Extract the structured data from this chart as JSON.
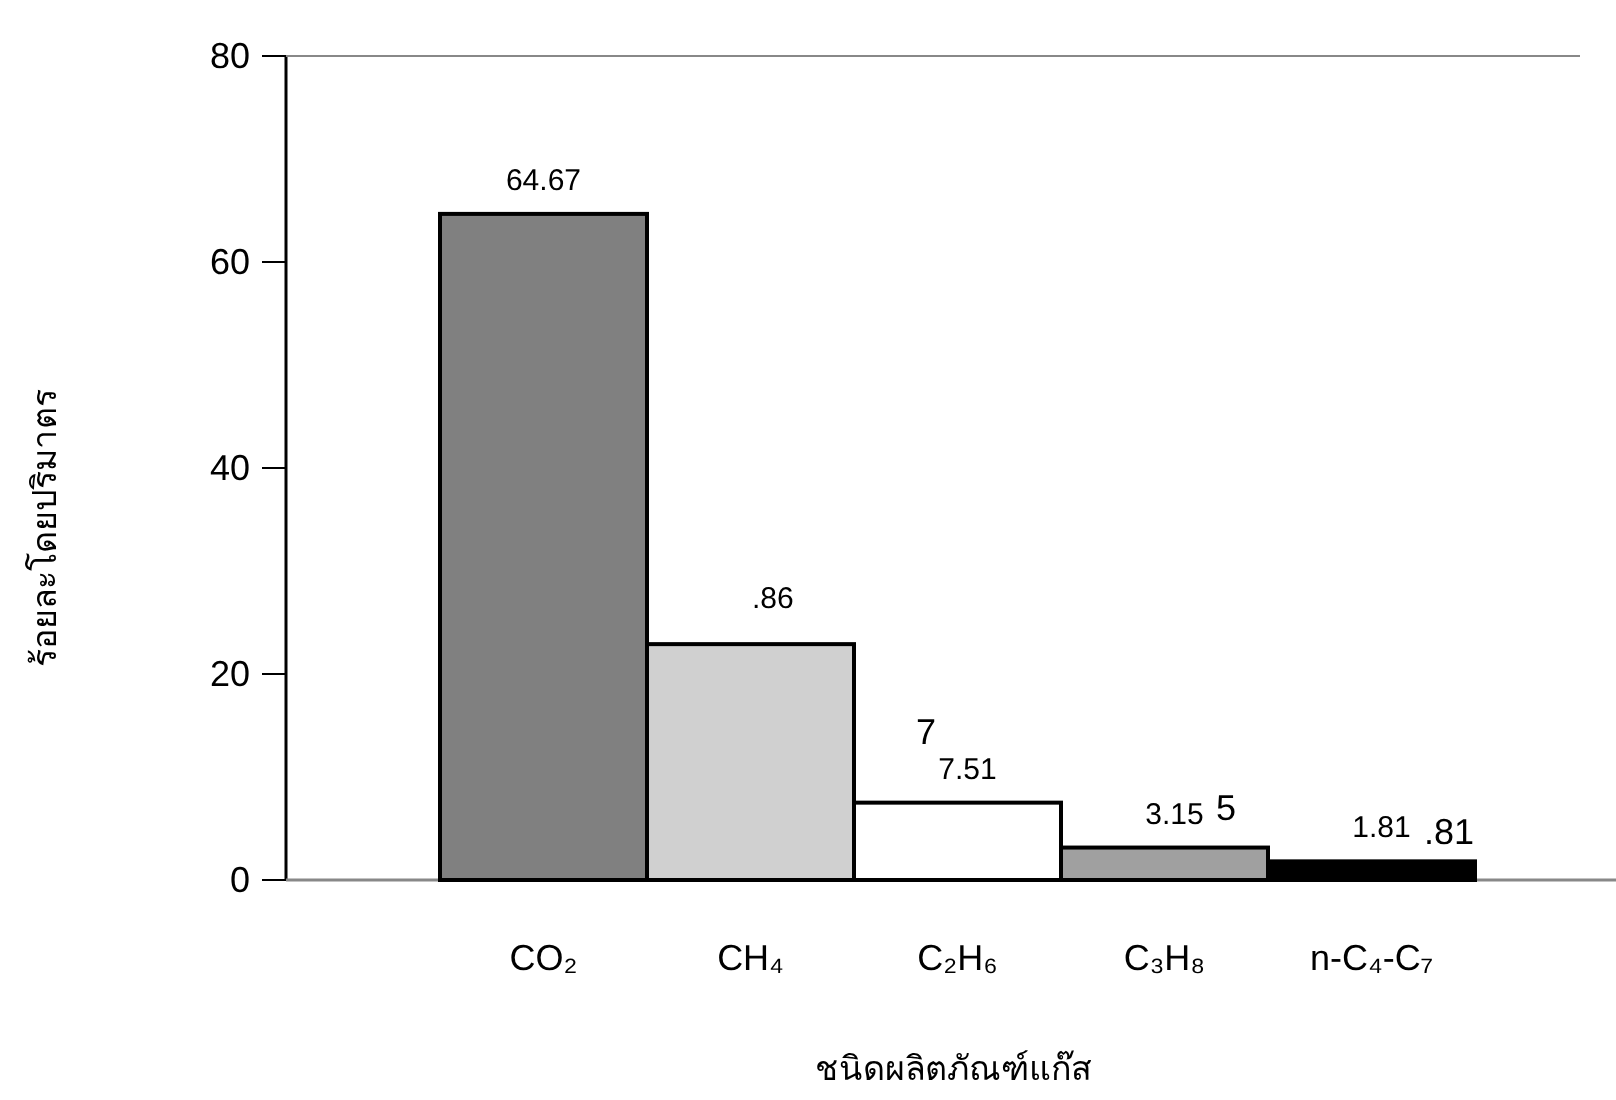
{
  "chart_data": {
    "type": "bar",
    "xlabel": "ชนิดผลิตภัณฑ์แก๊ส",
    "ylabel": "ร้อยละโดยปริมาตร",
    "categories": [
      "CO₂",
      "CH₄",
      "C₂H₆",
      "C₃H₈",
      "n-C₄-C₇"
    ],
    "values": [
      64.67,
      22.9,
      7.51,
      3.15,
      1.81
    ],
    "colors": [
      "#808080",
      "#d0d0d0",
      "#ffffff",
      "#a0a0a0",
      "#000000"
    ],
    "value_labels": [
      "64.67",
      null,
      "7.51",
      "3.15",
      "1.81"
    ],
    "annotations": [
      ".86",
      "7",
      "5",
      ".81"
    ],
    "ylim": [
      0,
      80
    ],
    "yticks": [
      0,
      20,
      40,
      60,
      80
    ],
    "grid": false
  }
}
